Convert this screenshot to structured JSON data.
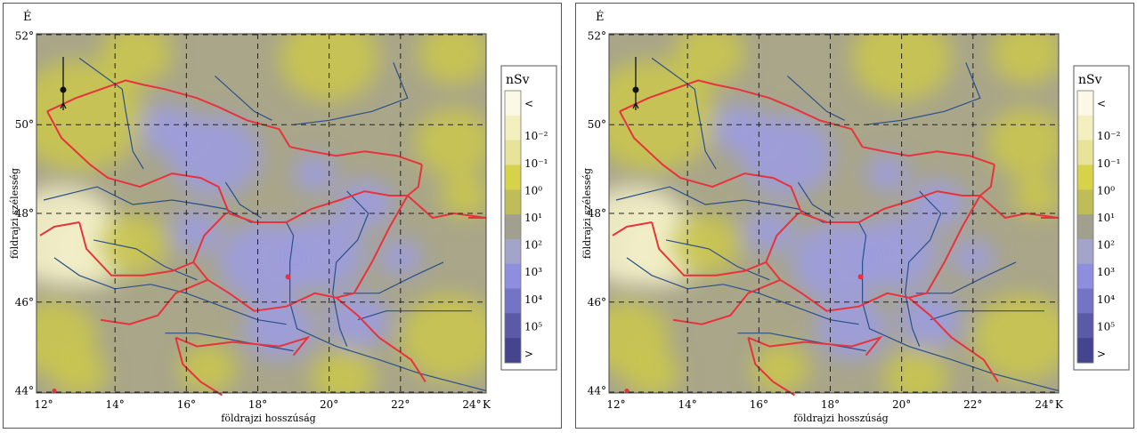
{
  "maps": [
    {
      "north_label": "É",
      "east_label": "K",
      "lat_ticks": [
        "52°",
        "50°",
        "48°",
        "46°",
        "44°"
      ],
      "lon_ticks": [
        "12°",
        "14°",
        "16°",
        "18°",
        "20°",
        "22°",
        "24°"
      ],
      "ylabel": "földrajzi szélesség",
      "xlabel": "földrajzi hosszúság",
      "legend": {
        "unit": "nSv",
        "labels": [
          "<",
          "10⁻²",
          "10⁻¹",
          "10⁰",
          "10¹",
          "10²",
          "10³",
          "10⁴",
          "10⁵",
          ">"
        ],
        "colors": [
          "#fbf8e6",
          "#f3efbf",
          "#e7e49a",
          "#d6d34b",
          "#bfbd58",
          "#a1a08e",
          "#a4a3c9",
          "#8e8edf",
          "#7474c6",
          "#5a5aa6",
          "#45458f"
        ]
      }
    },
    {
      "north_label": "É",
      "east_label": "K",
      "lat_ticks": [
        "52°",
        "50°",
        "48°",
        "46°",
        "44°"
      ],
      "lon_ticks": [
        "12°",
        "14°",
        "16°",
        "18°",
        "20°",
        "22°",
        "24°"
      ],
      "ylabel": "földrajzi szélesség",
      "xlabel": "földrajzi hosszúság",
      "legend": {
        "unit": "nSv",
        "labels": [
          "<",
          "10⁻²",
          "10⁻¹",
          "10⁰",
          "10¹",
          "10²",
          "10³",
          "10⁴",
          "10⁵",
          ">"
        ],
        "colors": [
          "#fbf8e6",
          "#f3efbf",
          "#e7e49a",
          "#d6d34b",
          "#bfbd58",
          "#a1a08e",
          "#a4a3c9",
          "#8e8edf",
          "#7474c6",
          "#5a5aa6",
          "#45458f"
        ]
      }
    }
  ],
  "colors": {
    "border": "#e8323c",
    "river": "#2b4f8a",
    "grid": "#222222",
    "background_field": "#a9a68a",
    "yellow_field": "#c9c550",
    "blue_field": "#9c9ce0"
  }
}
